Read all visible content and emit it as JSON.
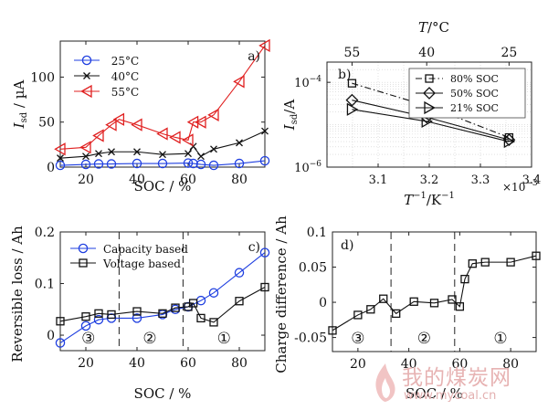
{
  "chart_data": [
    {
      "panel_label": "a)",
      "type": "line",
      "xlabel": "SOC / %",
      "ylabel_main": "I",
      "ylabel_sub": "sd",
      "ylabel_unit": " / µA",
      "xlim": [
        10,
        90
      ],
      "ylim": [
        0,
        140
      ],
      "xticks": [
        20,
        40,
        60,
        80
      ],
      "yticks": [
        0,
        50,
        100
      ],
      "legend_position": "top-left",
      "series": [
        {
          "name": "25°C",
          "color": "#1f3fe0",
          "marker": "circle",
          "x": [
            10,
            20,
            25,
            30,
            40,
            50,
            60,
            62,
            65,
            70,
            80,
            90
          ],
          "y": [
            2,
            3,
            3.5,
            3.5,
            4,
            4,
            4.5,
            4,
            3,
            2,
            4,
            7
          ]
        },
        {
          "name": "40°C",
          "color": "#111111",
          "marker": "x",
          "x": [
            10,
            20,
            25,
            30,
            40,
            50,
            60,
            62,
            65,
            70,
            80,
            90
          ],
          "y": [
            10,
            12,
            15,
            17,
            17,
            14,
            15,
            23,
            12,
            20,
            27,
            40
          ]
        },
        {
          "name": "55°C",
          "color": "#e02020",
          "marker": "triangle-left",
          "x": [
            10,
            20,
            25,
            30,
            33,
            40,
            50,
            55,
            60,
            62,
            65,
            70,
            80,
            90
          ],
          "y": [
            20,
            22,
            35,
            47,
            53,
            47,
            37,
            33,
            30,
            50,
            50,
            58,
            95,
            135
          ]
        }
      ]
    },
    {
      "panel_label": "b)",
      "type": "line",
      "xlabel_main": "T",
      "xlabel_sup": "−1",
      "xlabel_unit": "/K",
      "xlabel_unit_sup": "−1",
      "x_multiplier_base": "×10",
      "x_multiplier_exp": "−3",
      "top_axis_label": "T/°C",
      "top_ticks": [
        {
          "label": "55",
          "x": 3.049
        },
        {
          "label": "40",
          "x": 3.195
        },
        {
          "label": "25",
          "x": 3.356
        }
      ],
      "ylabel_main": "I",
      "ylabel_sub": "sd",
      "ylabel_unit": "/A",
      "xlim": [
        3.0,
        3.4
      ],
      "ylim_log": [
        1e-06,
        0.0003
      ],
      "y_scale": "log",
      "xticks": [
        "3.1",
        "3.2",
        "3.3",
        "3.4"
      ],
      "yticks_log": [
        {
          "base": "10",
          "exp": "−4",
          "value": 0.0001
        },
        {
          "base": "10",
          "exp": "−6",
          "value": 1e-06
        }
      ],
      "grid": true,
      "legend_position": "top-right",
      "series": [
        {
          "name": "80% SOC",
          "color": "#111111",
          "marker": "square",
          "dash": "7,3,1.5,3",
          "x": [
            3.049,
            3.195,
            3.356
          ],
          "y": [
            9.5e-05,
            2.8e-05,
            5e-06
          ]
        },
        {
          "name": "50% SOC",
          "color": "#111111",
          "marker": "diamond",
          "dash": "",
          "x": [
            3.049,
            3.195,
            3.356
          ],
          "y": [
            3.8e-05,
            1.5e-05,
            4.4e-06
          ]
        },
        {
          "name": "21% SOC",
          "color": "#111111",
          "marker": "triangle-right",
          "dash": "",
          "x": [
            3.049,
            3.195,
            3.356
          ],
          "y": [
            2.3e-05,
            1.2e-05,
            4e-06
          ]
        }
      ]
    },
    {
      "panel_label": "c)",
      "type": "line",
      "xlabel": "SOC / %",
      "ylabel": "Reversible loss / Ah",
      "xlim": [
        10,
        90
      ],
      "ylim": [
        -0.03,
        0.2
      ],
      "xticks": [
        20,
        40,
        60,
        80
      ],
      "yticks": [
        0,
        0.1,
        0.2
      ],
      "legend_position": "top-left",
      "dividers": [
        33,
        58
      ],
      "regions": [
        {
          "label": "③",
          "x": 21
        },
        {
          "label": "②",
          "x": 45
        },
        {
          "label": "①",
          "x": 74
        }
      ],
      "series": [
        {
          "name": "Capacity based",
          "color": "#1f3fe0",
          "marker": "circle",
          "x": [
            10,
            20,
            25,
            30,
            40,
            50,
            55,
            60,
            65,
            70,
            80,
            90
          ],
          "y": [
            -0.015,
            0.018,
            0.03,
            0.033,
            0.033,
            0.04,
            0.05,
            0.055,
            0.067,
            0.082,
            0.121,
            0.16
          ]
        },
        {
          "name": "Voltage based",
          "color": "#111111",
          "marker": "square",
          "x": [
            10,
            20,
            25,
            30,
            40,
            50,
            55,
            60,
            62,
            65,
            70,
            80,
            90
          ],
          "y": [
            0.027,
            0.036,
            0.042,
            0.04,
            0.046,
            0.042,
            0.053,
            0.055,
            0.062,
            0.033,
            0.025,
            0.066,
            0.093
          ]
        }
      ]
    },
    {
      "panel_label": "d)",
      "type": "line",
      "xlabel": "SOC / %",
      "ylabel": "Charge difference / Ah",
      "xlim": [
        10,
        90
      ],
      "ylim": [
        -0.07,
        0.1
      ],
      "xticks": [
        20,
        40,
        60,
        80
      ],
      "yticks": [
        -0.05,
        0,
        0.05,
        0.1
      ],
      "yticklabels": [
        "-0.05",
        "0",
        "0.05",
        "0.1"
      ],
      "dividers": [
        33,
        58
      ],
      "regions": [
        {
          "label": "③",
          "x": 20
        },
        {
          "label": "②",
          "x": 46
        },
        {
          "label": "①",
          "x": 76
        }
      ],
      "series": [
        {
          "name": "",
          "color": "#111111",
          "marker": "square",
          "x": [
            10,
            20,
            25,
            30,
            35,
            42,
            50,
            57,
            60,
            62,
            65,
            70,
            80,
            90
          ],
          "y": [
            -0.04,
            -0.018,
            -0.01,
            0.005,
            -0.016,
            0.001,
            -0.001,
            0.004,
            -0.006,
            0.033,
            0.055,
            0.057,
            0.057,
            0.066
          ]
        }
      ]
    }
  ],
  "watermark": {
    "title": "我的煤炭网",
    "url": "www.mycoal.cn"
  }
}
